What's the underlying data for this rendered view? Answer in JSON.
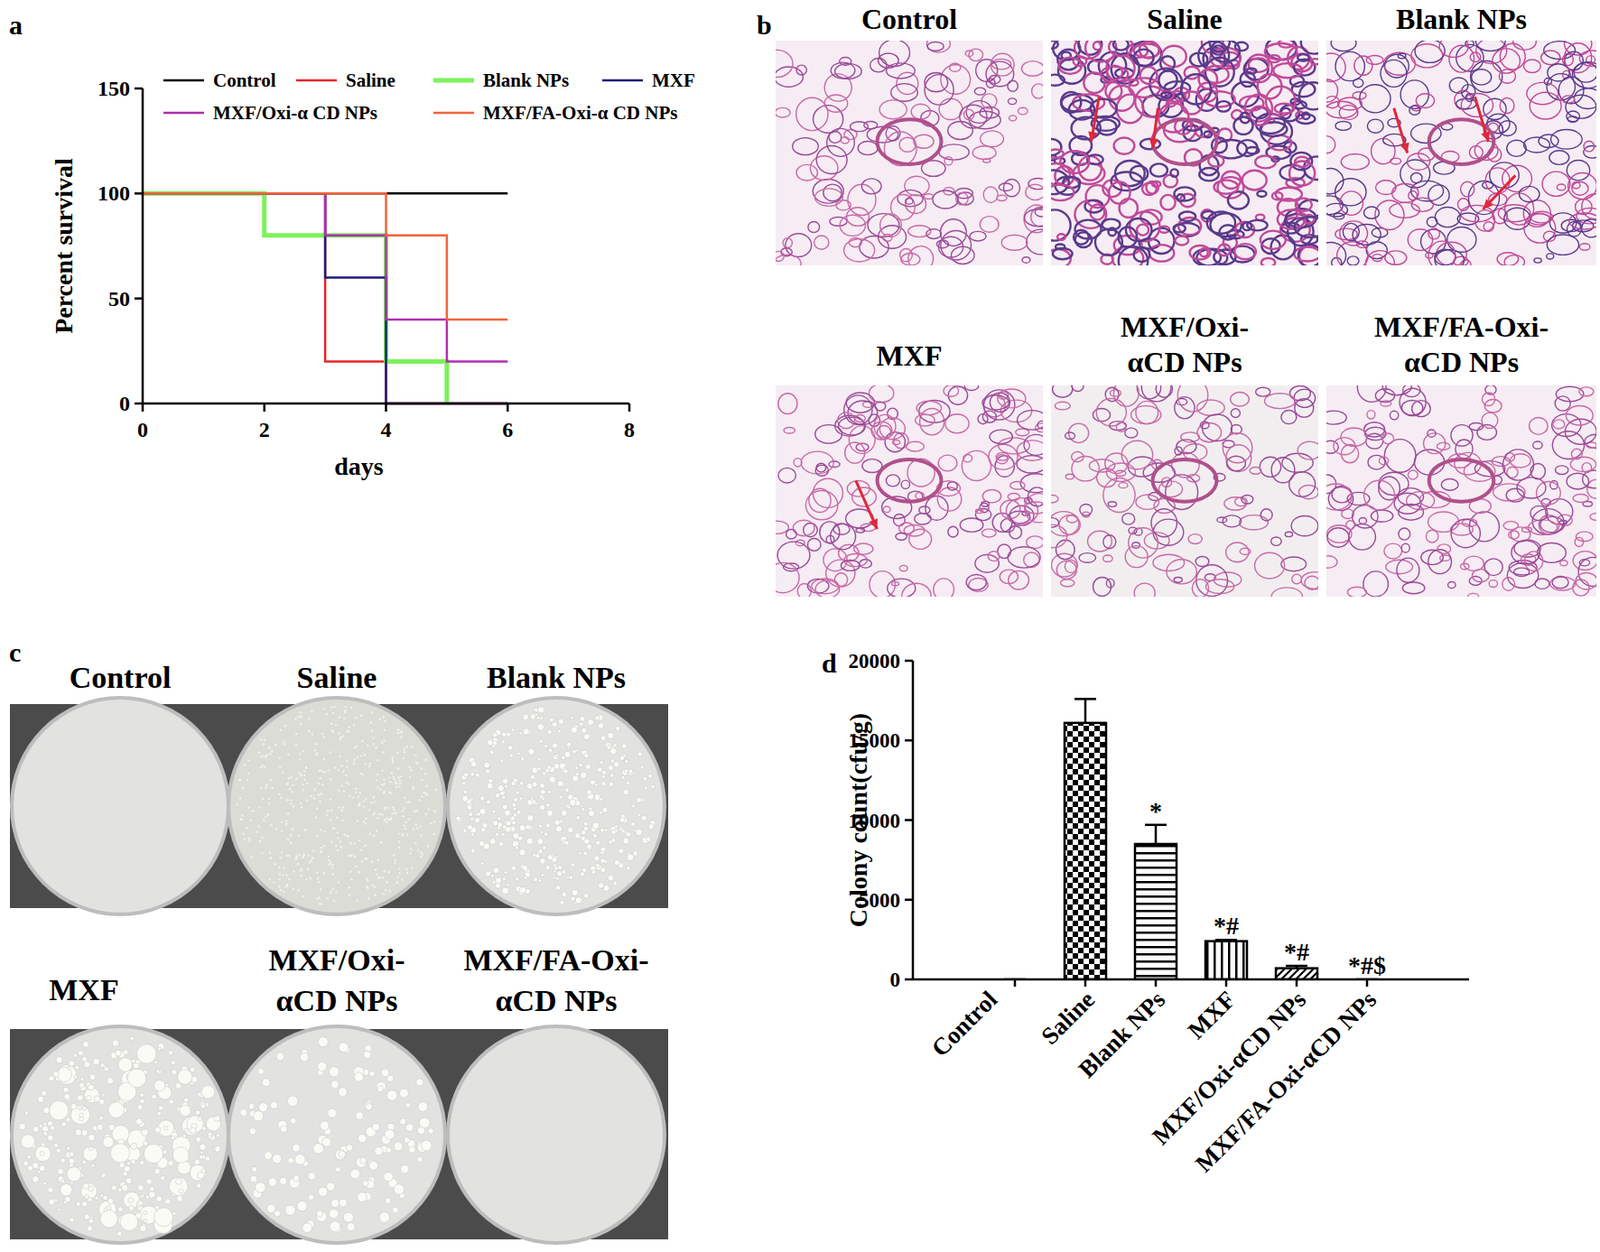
{
  "chart_data": [
    {
      "type": "line",
      "annotations": [
        "a"
      ],
      "xlabel": "days",
      "ylabel": "Percent survival",
      "xlim": [
        0,
        8
      ],
      "xticks": [
        0,
        2,
        4,
        6,
        8
      ],
      "ylim": [
        0,
        150
      ],
      "yticks": [
        0,
        50,
        100,
        150
      ],
      "legend": "top",
      "line_style": "step",
      "series": [
        {
          "name": "Control",
          "color": "#000000",
          "x": [
            0,
            6
          ],
          "values": [
            100,
            100
          ]
        },
        {
          "name": "Saline",
          "color": "#e8262a",
          "x": [
            0,
            3,
            4,
            6
          ],
          "values": [
            100,
            20,
            0,
            0
          ]
        },
        {
          "name": "Blank NPs",
          "color": "#7cf25a",
          "x": [
            0,
            2,
            4,
            5
          ],
          "values": [
            100,
            80,
            20,
            0
          ]
        },
        {
          "name": "MXF",
          "color": "#1c1c78",
          "x": [
            0,
            3,
            4,
            6
          ],
          "values": [
            100,
            60,
            0,
            0
          ]
        },
        {
          "name": "MXF/Oxi-α CD NPs",
          "color": "#b02fb0",
          "x": [
            0,
            3,
            4,
            5,
            6
          ],
          "values": [
            100,
            80,
            40,
            20,
            20
          ]
        },
        {
          "name": "MXF/FA-Oxi-α CD NPs",
          "color": "#f0643c",
          "x": [
            0,
            4,
            5,
            6
          ],
          "values": [
            100,
            80,
            40,
            40
          ]
        }
      ]
    },
    {
      "type": "bar",
      "annotations": [
        "d"
      ],
      "ylabel": "Colony count(cfu/g)",
      "color": "#000000",
      "categories": [
        "Control",
        "Saline",
        "Blank NPs",
        "MXF",
        "MXF/Oxi-αCD NPs",
        "MXF/FA-Oxi-αCD NPs"
      ],
      "values": [
        0,
        16100,
        8500,
        2400,
        700,
        0
      ],
      "errors": [
        0,
        1500,
        1200,
        80,
        150,
        0
      ],
      "significance": [
        null,
        null,
        "*",
        "*#",
        "*#",
        "*#$"
      ],
      "ylim": [
        0,
        20000
      ],
      "yticks": [
        0,
        5000,
        10000,
        15000,
        20000
      ]
    }
  ],
  "histology": {
    "label": "b",
    "titles": [
      [
        "Control"
      ],
      [
        "Saline"
      ],
      [
        "Blank NPs"
      ],
      [
        "MXF"
      ],
      [
        "MXF/Oxi-",
        "αCD NPs"
      ],
      [
        "MXF/FA-Oxi-",
        "αCD NPs"
      ]
    ]
  },
  "plates": {
    "label": "c",
    "titles": [
      [
        "Control"
      ],
      [
        "Saline"
      ],
      [
        "Blank NPs"
      ],
      [
        "MXF"
      ],
      [
        "MXF/Oxi-",
        "αCD NPs"
      ],
      [
        "MXF/FA-Oxi-",
        "αCD NPs"
      ]
    ]
  }
}
